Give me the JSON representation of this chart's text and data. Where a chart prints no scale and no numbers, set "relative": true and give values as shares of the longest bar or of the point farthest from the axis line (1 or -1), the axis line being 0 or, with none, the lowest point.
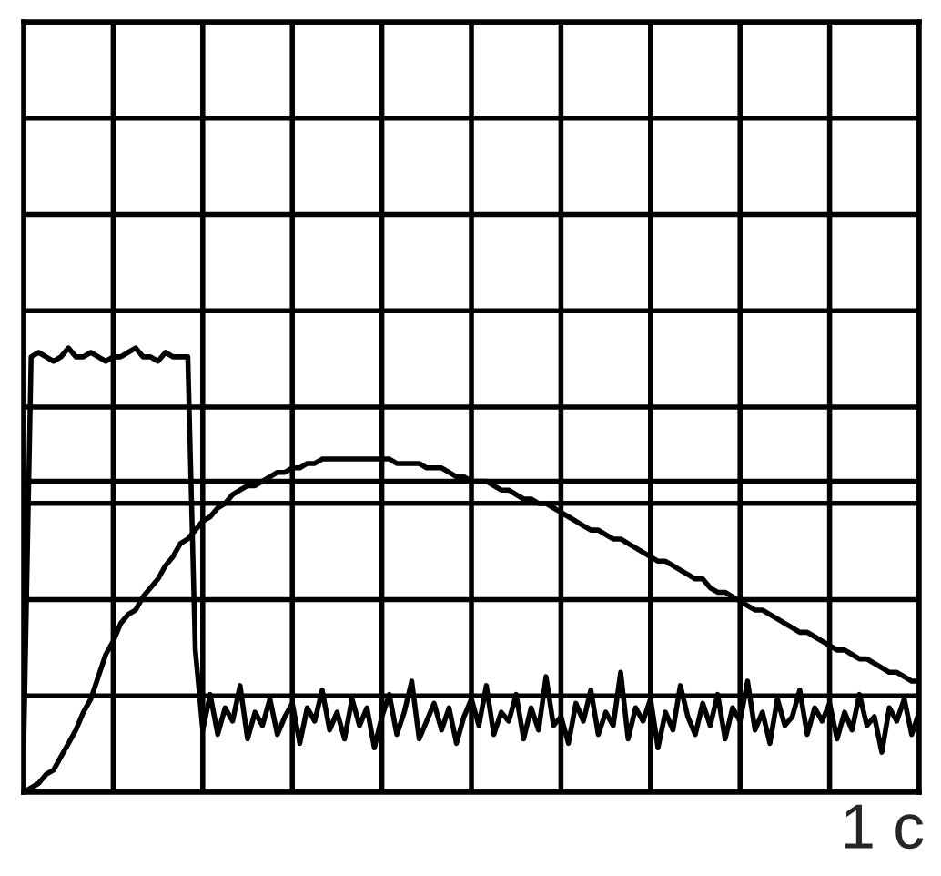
{
  "chart_data": {
    "type": "line",
    "relative": true,
    "categories": [
      null,
      null,
      null,
      null,
      null,
      null,
      null,
      null,
      null,
      null,
      null,
      null,
      null,
      null,
      null,
      null,
      null,
      null,
      null,
      null,
      null,
      null,
      null,
      null,
      null,
      null,
      null,
      null,
      null,
      null,
      null,
      null,
      null,
      null,
      null,
      null,
      null,
      null,
      null,
      null,
      null,
      null,
      null,
      null,
      null,
      null,
      null,
      null,
      null,
      null,
      null,
      null,
      null,
      null,
      null,
      null,
      null,
      null,
      null,
      null,
      null,
      null,
      null,
      null,
      null,
      null,
      null,
      null,
      null,
      null,
      null,
      null,
      null,
      null,
      null,
      null,
      null,
      null,
      null,
      null,
      null,
      null,
      null,
      null,
      null,
      null,
      null,
      null,
      null,
      null,
      null,
      null,
      null,
      null,
      null,
      null,
      null,
      null,
      null,
      null,
      null,
      null,
      null,
      null,
      null,
      null,
      null,
      null,
      null,
      null,
      null,
      null,
      null,
      null,
      null,
      null,
      null,
      null,
      null,
      null,
      null
    ],
    "series": [
      {
        "color": "#000000",
        "values": [
          0.1,
          0.98,
          0.99,
          0.98,
          0.97,
          0.98,
          1.0,
          0.98,
          0.98,
          0.99,
          0.98,
          0.97,
          0.98,
          0.98,
          0.99,
          1.0,
          0.98,
          0.98,
          0.97,
          0.99,
          0.98,
          0.98,
          0.98,
          0.32,
          0.14,
          0.22,
          0.13,
          0.19,
          0.16,
          0.24,
          0.12,
          0.18,
          0.15,
          0.21,
          0.13,
          0.17,
          0.2,
          0.11,
          0.19,
          0.16,
          0.23,
          0.14,
          0.18,
          0.12,
          0.21,
          0.15,
          0.19,
          0.1,
          0.17,
          0.22,
          0.13,
          0.18,
          0.25,
          0.12,
          0.16,
          0.2,
          0.14,
          0.19,
          0.11,
          0.17,
          0.21,
          0.15,
          0.24,
          0.13,
          0.18,
          0.16,
          0.22,
          0.12,
          0.19,
          0.14,
          0.26,
          0.15,
          0.17,
          0.11,
          0.2,
          0.16,
          0.23,
          0.13,
          0.18,
          0.15,
          0.27,
          0.12,
          0.19,
          0.16,
          0.21,
          0.1,
          0.18,
          0.14,
          0.24,
          0.17,
          0.13,
          0.2,
          0.15,
          0.22,
          0.12,
          0.19,
          0.16,
          0.25,
          0.14,
          0.18,
          0.11,
          0.21,
          0.15,
          0.17,
          0.23,
          0.13,
          0.19,
          0.16,
          0.2,
          0.12,
          0.18,
          0.14,
          0.22,
          0.15,
          0.17,
          0.09,
          0.19,
          0.16,
          0.21,
          0.13,
          0.18
        ]
      },
      {
        "color": "#000000",
        "values": [
          0,
          0.01,
          0.02,
          0.04,
          0.05,
          0.08,
          0.11,
          0.14,
          0.18,
          0.21,
          0.26,
          0.31,
          0.34,
          0.38,
          0.4,
          0.41,
          0.44,
          0.46,
          0.48,
          0.51,
          0.53,
          0.56,
          0.57,
          0.59,
          0.61,
          0.62,
          0.64,
          0.65,
          0.67,
          0.68,
          0.69,
          0.69,
          0.7,
          0.71,
          0.72,
          0.72,
          0.73,
          0.73,
          0.74,
          0.74,
          0.75,
          0.75,
          0.75,
          0.75,
          0.75,
          0.75,
          0.75,
          0.75,
          0.75,
          0.75,
          0.74,
          0.74,
          0.74,
          0.74,
          0.73,
          0.73,
          0.73,
          0.72,
          0.71,
          0.71,
          0.7,
          0.7,
          0.7,
          0.69,
          0.68,
          0.68,
          0.67,
          0.66,
          0.66,
          0.65,
          0.65,
          0.64,
          0.63,
          0.62,
          0.61,
          0.6,
          0.59,
          0.59,
          0.58,
          0.57,
          0.57,
          0.56,
          0.55,
          0.54,
          0.53,
          0.52,
          0.52,
          0.51,
          0.5,
          0.49,
          0.48,
          0.48,
          0.46,
          0.45,
          0.45,
          0.44,
          0.43,
          0.42,
          0.41,
          0.41,
          0.4,
          0.39,
          0.38,
          0.37,
          0.36,
          0.36,
          0.35,
          0.34,
          0.33,
          0.32,
          0.32,
          0.31,
          0.3,
          0.3,
          0.29,
          0.28,
          0.27,
          0.27,
          0.26,
          0.25,
          0.25
        ]
      }
    ],
    "ref_lines": [
      {
        "axis": "y",
        "value": 0.7,
        "color": "#000000"
      }
    ],
    "grid": true,
    "tick_labels": false,
    "line_style": "solid",
    "annotations": [
      "1 c"
    ]
  }
}
